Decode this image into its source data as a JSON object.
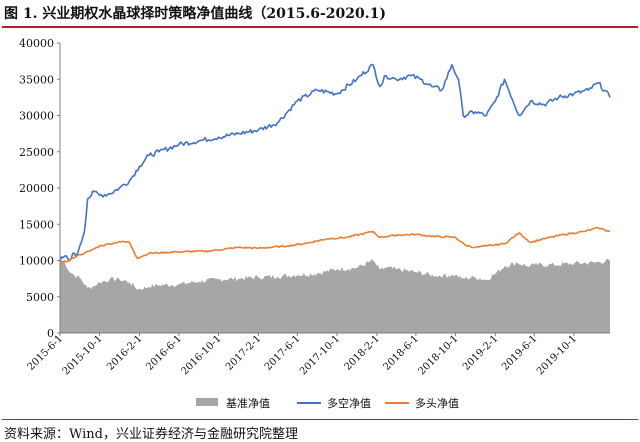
{
  "header": {
    "title": "图 1. 兴业期权水晶球择时策略净值曲线（2015.6-2020.1)"
  },
  "footer": {
    "source": "资料来源：Wind，兴业证券经济与金融研究院整理"
  },
  "colors": {
    "benchmark": "#a6a6a6",
    "long_short": "#4472c4",
    "long_only": "#ed7d31",
    "accent_rule": "#b22222"
  },
  "chart_data": {
    "type": "line",
    "title": "图 1. 兴业期权水晶球择时策略净值曲线（2015.6-2020.1)",
    "xlabel": "",
    "ylabel": "",
    "ylim": [
      0,
      40000
    ],
    "yticks": [
      0,
      5000,
      10000,
      15000,
      20000,
      25000,
      30000,
      35000,
      40000
    ],
    "xticks": [
      "2015-6-1",
      "2015-10-1",
      "2016-2-1",
      "2016-6-1",
      "2016-10-1",
      "2017-2-1",
      "2017-6-1",
      "2017-10-1",
      "2018-2-1",
      "2018-6-1",
      "2018-10-1",
      "2019-2-1",
      "2019-6-1",
      "2019-10-1"
    ],
    "x_range": [
      "2015-06-01",
      "2020-01-20"
    ],
    "grid": false,
    "legend_position": "bottom",
    "series": [
      {
        "name": "基准净值",
        "type": "area",
        "x": [
          "2015-06-01",
          "2015-06-15",
          "2015-07-01",
          "2015-07-15",
          "2015-08-01",
          "2015-08-25",
          "2015-09-15",
          "2015-10-01",
          "2015-11-01",
          "2015-12-01",
          "2016-01-01",
          "2016-01-28",
          "2016-03-01",
          "2016-04-01",
          "2016-06-01",
          "2016-08-01",
          "2016-10-01",
          "2016-12-01",
          "2017-02-01",
          "2017-04-01",
          "2017-06-01",
          "2017-08-01",
          "2017-10-01",
          "2017-12-01",
          "2018-01-20",
          "2018-02-10",
          "2018-03-01",
          "2018-04-01",
          "2018-06-01",
          "2018-08-01",
          "2018-10-01",
          "2018-10-20",
          "2018-12-01",
          "2019-01-04",
          "2019-02-01",
          "2019-03-01",
          "2019-04-10",
          "2019-05-10",
          "2019-06-01",
          "2019-08-01",
          "2019-10-01",
          "2019-12-01",
          "2020-01-20"
        ],
        "values": [
          10000,
          9800,
          8400,
          8000,
          7600,
          6200,
          6500,
          7000,
          7400,
          7400,
          7000,
          6000,
          6400,
          6600,
          6700,
          7100,
          7400,
          7500,
          7700,
          7800,
          8000,
          8200,
          8800,
          9000,
          10000,
          8700,
          9000,
          8800,
          8400,
          7900,
          8000,
          7500,
          7700,
          7300,
          8200,
          9200,
          9700,
          9200,
          9400,
          9400,
          9600,
          9700,
          10000
        ]
      },
      {
        "name": "多空净值",
        "type": "line",
        "x": [
          "2015-06-01",
          "2015-06-15",
          "2015-07-01",
          "2015-07-10",
          "2015-07-20",
          "2015-08-01",
          "2015-08-15",
          "2015-08-25",
          "2015-09-15",
          "2015-10-01",
          "2015-11-01",
          "2015-12-01",
          "2016-01-01",
          "2016-02-01",
          "2016-03-01",
          "2016-04-01",
          "2016-06-01",
          "2016-08-01",
          "2016-10-01",
          "2016-12-01",
          "2017-02-01",
          "2017-04-01",
          "2017-06-01",
          "2017-08-01",
          "2017-10-01",
          "2017-12-01",
          "2018-01-20",
          "2018-02-10",
          "2018-03-01",
          "2018-04-01",
          "2018-05-15",
          "2018-06-15",
          "2018-07-20",
          "2018-08-20",
          "2018-09-20",
          "2018-10-10",
          "2018-10-25",
          "2018-12-01",
          "2019-01-04",
          "2019-02-01",
          "2019-03-01",
          "2019-04-15",
          "2019-05-20",
          "2019-07-01",
          "2019-08-15",
          "2019-10-01",
          "2019-11-15",
          "2019-12-15",
          "2020-01-20"
        ],
        "values": [
          10000,
          10600,
          10000,
          11000,
          10500,
          12000,
          14000,
          18500,
          19500,
          19000,
          19200,
          20000,
          21000,
          23000,
          24500,
          25000,
          26000,
          26500,
          27000,
          27500,
          28000,
          29000,
          32000,
          33500,
          33000,
          35000,
          37000,
          34000,
          35500,
          35000,
          35500,
          35000,
          34000,
          33500,
          37000,
          35000,
          30000,
          30500,
          30000,
          32000,
          35000,
          30000,
          32000,
          31500,
          32500,
          33000,
          33500,
          34500,
          32500
        ]
      },
      {
        "name": "多头净值",
        "type": "line",
        "x": [
          "2015-06-01",
          "2015-06-20",
          "2015-07-10",
          "2015-07-25",
          "2015-08-15",
          "2015-09-01",
          "2015-10-01",
          "2015-11-01",
          "2015-12-01",
          "2016-01-01",
          "2016-01-25",
          "2016-03-01",
          "2016-06-01",
          "2016-09-01",
          "2016-12-01",
          "2017-02-01",
          "2017-05-01",
          "2017-07-01",
          "2017-09-01",
          "2017-11-01",
          "2018-01-20",
          "2018-02-10",
          "2018-04-01",
          "2018-06-01",
          "2018-08-01",
          "2018-10-01",
          "2018-11-01",
          "2018-12-01",
          "2019-01-04",
          "2019-03-01",
          "2019-04-15",
          "2019-05-20",
          "2019-07-01",
          "2019-09-01",
          "2019-11-01",
          "2019-12-15",
          "2020-01-20"
        ],
        "values": [
          10000,
          9800,
          10300,
          10700,
          11000,
          11300,
          12000,
          12300,
          12600,
          12500,
          10300,
          11000,
          11200,
          11300,
          11800,
          11700,
          12000,
          12400,
          13000,
          13200,
          14000,
          13200,
          13500,
          13600,
          13300,
          13200,
          12100,
          11800,
          12000,
          12300,
          13800,
          12500,
          13000,
          13600,
          14000,
          14500,
          14000
        ]
      }
    ]
  }
}
